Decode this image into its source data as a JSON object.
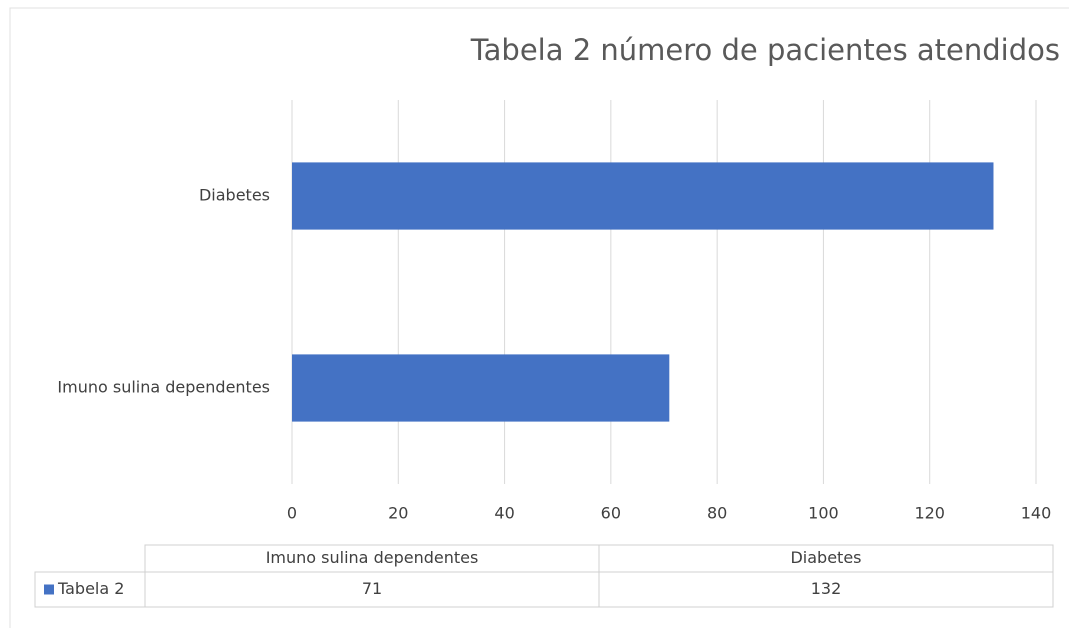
{
  "chart_data": {
    "type": "bar",
    "orientation": "horizontal",
    "title": "Tabela 2 número de pacientes atendidos",
    "categories": [
      "Imuno sulina dependentes",
      "Diabetes"
    ],
    "series": [
      {
        "name": "Tabela 2",
        "color": "#4472c4",
        "values": [
          71,
          132
        ]
      }
    ],
    "xlim": [
      0,
      140
    ],
    "xticks": [
      0,
      20,
      40,
      60,
      80,
      100,
      120,
      140
    ],
    "grid": true,
    "data_table": true
  }
}
